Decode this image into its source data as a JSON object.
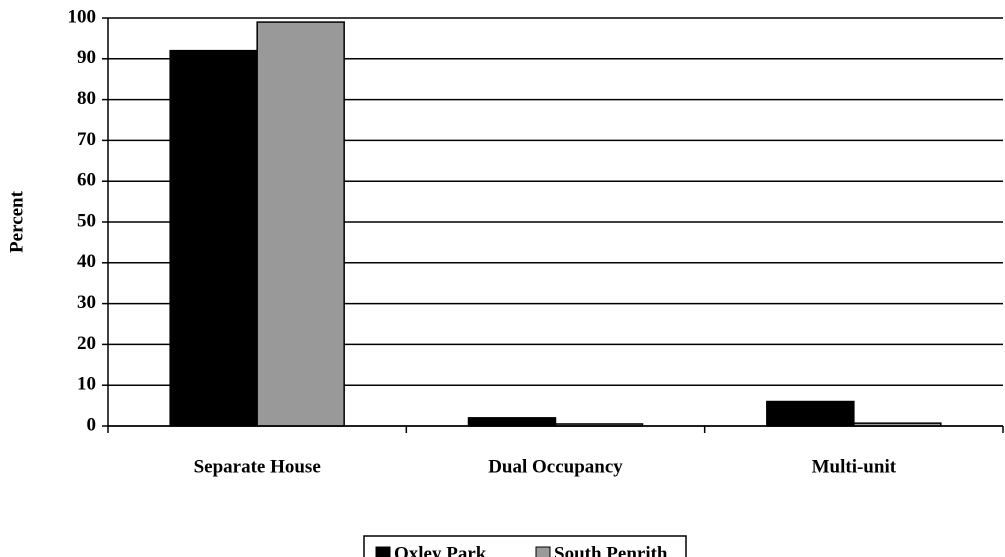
{
  "chart_data": {
    "type": "bar",
    "y_label": "Percent",
    "categories": [
      "Separate House",
      "Dual Occupancy",
      "Multi-unit"
    ],
    "series": [
      {
        "name": "Oxley Park",
        "color": "#000000",
        "values": [
          92,
          2,
          6
        ]
      },
      {
        "name": "South Penrith",
        "color": "#999999",
        "values": [
          99,
          0.5,
          0.7
        ]
      }
    ],
    "ylim": [
      0,
      100
    ],
    "yticks": [
      0,
      10,
      20,
      30,
      40,
      50,
      60,
      70,
      80,
      90,
      100
    ],
    "grid": true,
    "legend": "bottom"
  }
}
